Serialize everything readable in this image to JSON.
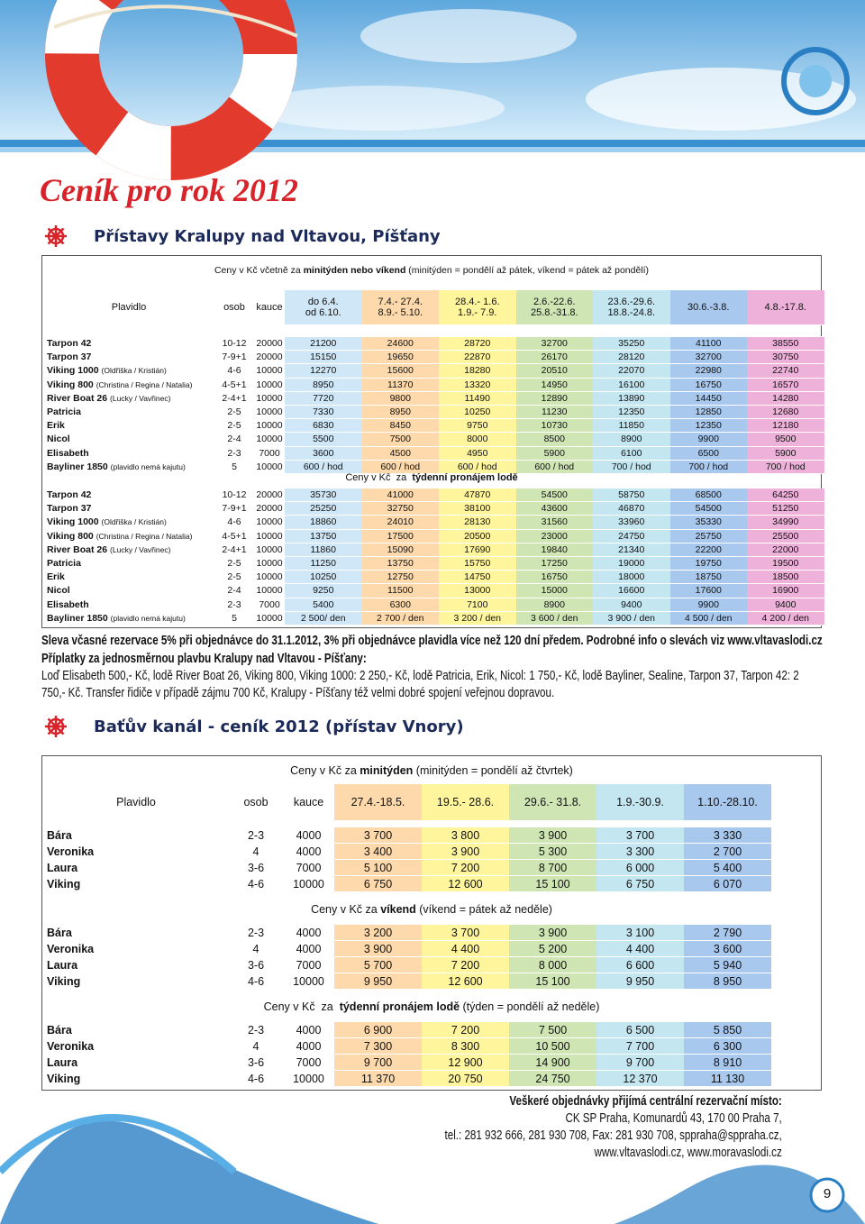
{
  "page": {
    "title": "Ceník pro rok 2012",
    "number": "9"
  },
  "kralupy": {
    "heading": "Přístavy Kralupy nad Vltavou, Píšťany",
    "note": [
      "Ceny v Kč včetně za ",
      "minitýden nebo víkend",
      " (minitýden = pondělí až pátek, víkend = pátek až pondělí)"
    ],
    "headers": {
      "vessel": "Plavidlo",
      "persons": "osob",
      "deposit": "kauce",
      "periods": [
        [
          "do 6.4.",
          "od 6.10."
        ],
        [
          "7.4.- 27.4.",
          "8.9.- 5.10."
        ],
        [
          "28.4.- 1.6.",
          "1.9.- 7.9."
        ],
        [
          "2.6.-22.6.",
          "25.8.-31.8."
        ],
        [
          "23.6.-29.6.",
          "18.8.-24.8."
        ],
        [
          "30.6.-3.8."
        ],
        [
          "4.8.-17.8."
        ]
      ]
    },
    "column_colors": [
      "#cfe7f7",
      "#fdd9ab",
      "#fff59d",
      "#cfe6b4",
      "#c3e6f1",
      "#a9c8ee",
      "#eeb2da"
    ],
    "minitrip": [
      {
        "name": "Tarpon 42",
        "persons": "10-12",
        "deposit": 20000,
        "prices": [
          21200,
          24600,
          28720,
          32700,
          35250,
          41100,
          38550
        ]
      },
      {
        "name": "Tarpon 37",
        "persons": "7-9+1",
        "deposit": 20000,
        "prices": [
          15150,
          19650,
          22870,
          26170,
          28120,
          32700,
          30750
        ]
      },
      {
        "name": "Viking 1000",
        "detail": "(Oldřiška / Kristián)",
        "persons": "4-6",
        "deposit": 10000,
        "prices": [
          12270,
          15600,
          18280,
          20510,
          22070,
          22980,
          22740
        ]
      },
      {
        "name": "Viking 800",
        "detail": "(Christina / Regina / Natalia)",
        "persons": "4-5+1",
        "deposit": 10000,
        "prices": [
          8950,
          11370,
          13320,
          14950,
          16100,
          16750,
          16570
        ]
      },
      {
        "name": "River Boat 26",
        "detail": "(Lucky / Vavřinec)",
        "persons": "2-4+1",
        "deposit": 10000,
        "prices": [
          7720,
          9800,
          11490,
          12890,
          13890,
          14450,
          14280
        ]
      },
      {
        "name": "Patricia",
        "persons": "2-5",
        "deposit": 10000,
        "prices": [
          7330,
          8950,
          10250,
          11230,
          12350,
          12850,
          12680
        ]
      },
      {
        "name": "Erik",
        "persons": "2-5",
        "deposit": 10000,
        "prices": [
          6830,
          8450,
          9750,
          10730,
          11850,
          12350,
          12180
        ]
      },
      {
        "name": "Nicol",
        "persons": "2-4",
        "deposit": 10000,
        "prices": [
          5500,
          7500,
          8000,
          8500,
          8900,
          9900,
          9500
        ]
      },
      {
        "name": "Elisabeth",
        "persons": "2-3",
        "deposit": 7000,
        "prices": [
          3600,
          4500,
          4950,
          5900,
          6100,
          6500,
          5900
        ]
      },
      {
        "name": "Bayliner 1850",
        "detail": "(plavidlo nemá kajutu)",
        "persons": "5",
        "deposit": 10000,
        "prices": [
          "600 / hod",
          "600 / hod",
          "600 / hod",
          "600 / hod",
          "700 / hod",
          "700 / hod",
          "700 / hod"
        ]
      }
    ],
    "week_caption": [
      "Ceny v Kč  za  ",
      "týdenní pronájem lodě"
    ],
    "week": [
      {
        "name": "Tarpon 42",
        "persons": "10-12",
        "deposit": 20000,
        "prices": [
          35730,
          41000,
          47870,
          54500,
          58750,
          68500,
          64250
        ]
      },
      {
        "name": "Tarpon 37",
        "persons": "7-9+1",
        "deposit": 20000,
        "prices": [
          25250,
          32750,
          38100,
          43600,
          46870,
          54500,
          51250
        ]
      },
      {
        "name": "Viking 1000",
        "detail": "(Oldřiška / Kristián)",
        "persons": "4-6",
        "deposit": 10000,
        "prices": [
          18860,
          24010,
          28130,
          31560,
          33960,
          35330,
          34990
        ]
      },
      {
        "name": "Viking 800",
        "detail": "(Christina / Regina / Natalia)",
        "persons": "4-5+1",
        "deposit": 10000,
        "prices": [
          13750,
          17500,
          20500,
          23000,
          24750,
          25750,
          25500
        ]
      },
      {
        "name": "River Boat 26",
        "detail": "(Lucky / Vavřinec)",
        "persons": "2-4+1",
        "deposit": 10000,
        "prices": [
          11860,
          15090,
          17690,
          19840,
          21340,
          22200,
          22000
        ]
      },
      {
        "name": "Patricia",
        "persons": "2-5",
        "deposit": 10000,
        "prices": [
          11250,
          13750,
          15750,
          17250,
          19000,
          19750,
          19500
        ]
      },
      {
        "name": "Erik",
        "persons": "2-5",
        "deposit": 10000,
        "prices": [
          10250,
          12750,
          14750,
          16750,
          18000,
          18750,
          18500
        ]
      },
      {
        "name": "Nicol",
        "persons": "2-4",
        "deposit": 10000,
        "prices": [
          9250,
          11500,
          13000,
          15000,
          16600,
          17600,
          16900
        ]
      },
      {
        "name": "Elisabeth",
        "persons": "2-3",
        "deposit": 7000,
        "prices": [
          5400,
          6300,
          7100,
          8900,
          9400,
          9900,
          9400
        ]
      },
      {
        "name": "Bayliner 1850",
        "detail": "(plavidlo nemá kajutu)",
        "persons": "5",
        "deposit": 10000,
        "prices": [
          "2 500/ den",
          "2 700 / den",
          "3 200 / den",
          "3 600 / den",
          "3 900 / den",
          "4 500 / den",
          "4 200 / den"
        ]
      }
    ],
    "discount": "Sleva včasné rezervace 5% při objednávce do 31.1.2012, 3% při objednávce plavidla více než 120 dní předem. Podrobné info o slevách viz www.vltavaslodi.cz",
    "surcharge_title": "Příplatky za jednosměrnou plavbu Kralupy nad Vltavou - Píšťany:",
    "surcharge_text": "Loď Elisabeth 500,- Kč, lodě River Boat 26, Viking 800, Viking 1000: 2 250,- Kč, lodě Patricia, Erik, Nicol: 1 750,- Kč, lodě Bayliner, Sealine, Tarpon 37, Tarpon 42: 2 750,- Kč. Transfer řidiče v případě zájmu 700 Kč, Kralupy - Píšťany též velmi dobré spojení veřejnou dopravou."
  },
  "batuv": {
    "heading": "Baťův kanál - ceník 2012 (přístav Vnory)",
    "headers": {
      "vessel": "Plavidlo",
      "persons": "osob",
      "deposit": "kauce",
      "periods": [
        "27.4.-18.5.",
        "19.5.- 28.6.",
        "29.6.- 31.8.",
        "1.9.-30.9.",
        "1.10.-28.10."
      ]
    },
    "column_colors": [
      "#fdd9ab",
      "#fff59d",
      "#cfe6b4",
      "#c3e6f1",
      "#a9c8ee"
    ],
    "blocks": [
      {
        "caption": [
          "Ceny v Kč za ",
          "minitýden",
          " (minitýden = pondělí až čtvrtek)"
        ],
        "rows": [
          {
            "name": "Bára",
            "persons": "2-3",
            "deposit": 4000,
            "prices": [
              "3 700",
              "3 800",
              "3 900",
              "3 700",
              "3 330"
            ]
          },
          {
            "name": "Veronika",
            "persons": "4",
            "deposit": 4000,
            "prices": [
              "3 400",
              "3 900",
              "5 300",
              "3 300",
              "2 700"
            ]
          },
          {
            "name": "Laura",
            "persons": "3-6",
            "deposit": 7000,
            "prices": [
              "5 100",
              "7 200",
              "8 700",
              "6 000",
              "5 400"
            ]
          },
          {
            "name": "Viking",
            "persons": "4-6",
            "deposit": 10000,
            "prices": [
              "6 750",
              "12 600",
              "15 100",
              "6 750",
              "6 070"
            ]
          }
        ]
      },
      {
        "caption": [
          "Ceny v Kč za ",
          "víkend",
          " (víkend = pátek až neděle)"
        ],
        "rows": [
          {
            "name": "Bára",
            "persons": "2-3",
            "deposit": 4000,
            "prices": [
              "3 200",
              "3 700",
              "3 900",
              "3 100",
              "2 790"
            ]
          },
          {
            "name": "Veronika",
            "persons": "4",
            "deposit": 4000,
            "prices": [
              "3 900",
              "4 400",
              "5 200",
              "4 400",
              "3 600"
            ]
          },
          {
            "name": "Laura",
            "persons": "3-6",
            "deposit": 7000,
            "prices": [
              "5 700",
              "7 200",
              "8 000",
              "6 600",
              "5 940"
            ]
          },
          {
            "name": "Viking",
            "persons": "4-6",
            "deposit": 10000,
            "prices": [
              "9 950",
              "12 600",
              "15 100",
              "9 950",
              "8 950"
            ]
          }
        ]
      },
      {
        "caption": [
          "Ceny v Kč  za  ",
          "týdenní pronájem lodě",
          " (týden = pondělí až neděle)"
        ],
        "rows": [
          {
            "name": "Bára",
            "persons": "2-3",
            "deposit": 4000,
            "prices": [
              "6 900",
              "7 200",
              "7 500",
              "6 500",
              "5 850"
            ]
          },
          {
            "name": "Veronika",
            "persons": "4",
            "deposit": 4000,
            "prices": [
              "7 300",
              "8 300",
              "10 500",
              "7 700",
              "6 300"
            ]
          },
          {
            "name": "Laura",
            "persons": "3-6",
            "deposit": 7000,
            "prices": [
              "9 700",
              "12 900",
              "14 900",
              "9 700",
              "8 910"
            ]
          },
          {
            "name": "Viking",
            "persons": "4-6",
            "deposit": 10000,
            "prices": [
              "11 370",
              "20 750",
              "24 750",
              "12 370",
              "11 130"
            ]
          }
        ]
      }
    ]
  },
  "contact": {
    "title": "Veškeré objednávky přijímá centrální rezervační místo:",
    "lines": [
      "CK SP Praha, Komunardů 43, 170 00 Praha 7,",
      "tel.: 281 932 666, 281 930 708, Fax: 281 930 708, sppraha@sppraha.cz,",
      "www.vltavaslodi.cz, www.moravaslodi.cz"
    ]
  }
}
